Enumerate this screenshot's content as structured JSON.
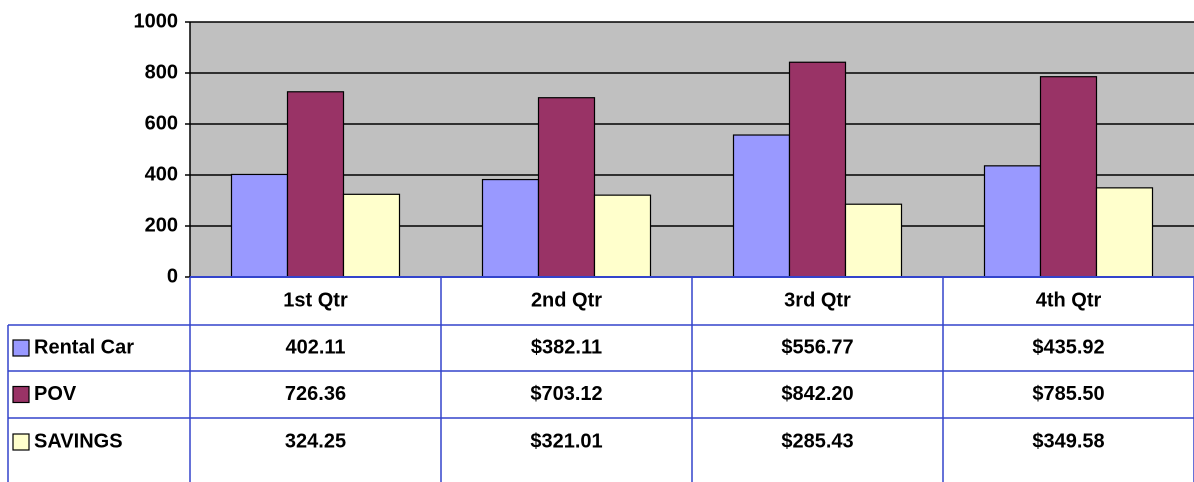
{
  "chart_data": {
    "type": "bar",
    "categories": [
      "1st Qtr",
      "2nd Qtr",
      "3rd Qtr",
      "4th Qtr"
    ],
    "series": [
      {
        "name": "Rental Car",
        "color": "#9999ff",
        "values": [
          402.11,
          382.11,
          556.77,
          435.92
        ],
        "value_labels": [
          "402.11",
          "$382.11",
          "$556.77",
          "$435.92"
        ]
      },
      {
        "name": "POV",
        "color": "#993366",
        "values": [
          726.36,
          703.12,
          842.2,
          785.5
        ],
        "value_labels": [
          "726.36",
          "$703.12",
          "$842.20",
          "$785.50"
        ]
      },
      {
        "name": "SAVINGS",
        "color": "#ffffcc",
        "values": [
          324.25,
          321.01,
          285.43,
          349.58
        ],
        "value_labels": [
          "324.25",
          "$321.01",
          "$285.43",
          "$349.58"
        ]
      }
    ],
    "ylim": [
      0,
      1000
    ],
    "yticks": [
      0,
      200,
      400,
      600,
      800,
      1000
    ],
    "grid": true,
    "legend": "data-table"
  }
}
